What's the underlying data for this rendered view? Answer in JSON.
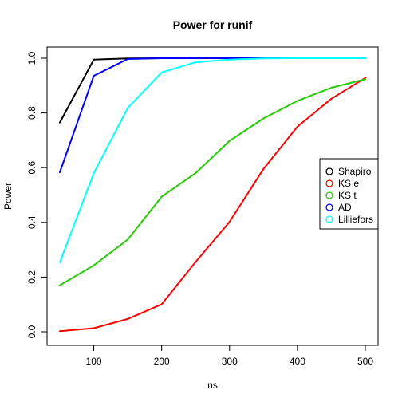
{
  "chart_data": {
    "type": "line",
    "title": "Power for runif",
    "xlabel": "ns",
    "ylabel": "Power",
    "x": [
      50,
      100,
      150,
      200,
      250,
      300,
      350,
      400,
      450,
      500
    ],
    "xlim": [
      50,
      500
    ],
    "ylim": [
      0,
      1
    ],
    "xticks": [
      100,
      200,
      300,
      400,
      500
    ],
    "yticks": [
      0.0,
      0.2,
      0.4,
      0.6,
      0.8,
      1.0
    ],
    "xtick_labels": [
      "100",
      "200",
      "300",
      "400",
      "500"
    ],
    "ytick_labels": [
      "0.0",
      "0.2",
      "0.4",
      "0.6",
      "0.8",
      "1.0"
    ],
    "grid": false,
    "legend_position": "right",
    "series": [
      {
        "name": "Shapiro",
        "color": "#000000",
        "values": [
          0.765,
          0.995,
          0.999,
          1.0,
          1.0,
          1.0,
          1.0,
          1.0,
          1.0,
          1.0
        ]
      },
      {
        "name": "KS e",
        "color": "#ff0000",
        "values": [
          0.002,
          0.013,
          0.047,
          0.101,
          0.255,
          0.402,
          0.595,
          0.75,
          0.852,
          0.928
        ]
      },
      {
        "name": "KS t",
        "color": "#22cc00",
        "values": [
          0.17,
          0.243,
          0.337,
          0.494,
          0.58,
          0.698,
          0.78,
          0.844,
          0.892,
          0.923
        ]
      },
      {
        "name": "AD",
        "color": "#0000ff",
        "values": [
          0.583,
          0.936,
          0.997,
          1.0,
          1.0,
          1.0,
          1.0,
          1.0,
          1.0,
          1.0
        ]
      },
      {
        "name": "Lilliefors",
        "color": "#00ffff",
        "values": [
          0.254,
          0.58,
          0.818,
          0.948,
          0.985,
          0.995,
          0.999,
          1.0,
          1.0,
          1.0
        ]
      }
    ]
  }
}
